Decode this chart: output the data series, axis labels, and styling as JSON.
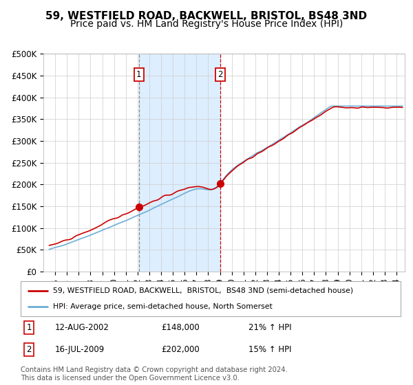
{
  "title": "59, WESTFIELD ROAD, BACKWELL, BRISTOL, BS48 3ND",
  "subtitle": "Price paid vs. HM Land Registry's House Price Index (HPI)",
  "legend_line1": "59, WESTFIELD ROAD, BACKWELL,  BRISTOL,  BS48 3ND (semi-detached house)",
  "legend_line2": "HPI: Average price, semi-detached house, North Somerset",
  "annotation1_label": "1",
  "annotation1_date": "12-AUG-2002",
  "annotation1_price": "£148,000",
  "annotation1_hpi": "21% ↑ HPI",
  "annotation2_label": "2",
  "annotation2_date": "16-JUL-2009",
  "annotation2_price": "£202,000",
  "annotation2_hpi": "15% ↑ HPI",
  "footnote": "Contains HM Land Registry data © Crown copyright and database right 2024.\nThis data is licensed under the Open Government Licence v3.0.",
  "hpi_color": "#6baed6",
  "price_color": "#cc0000",
  "marker_color": "#cc0000",
  "shade_color": "#ddeeff",
  "vline1_color": "#888888",
  "vline2_color": "#cc0000",
  "annotation_box_color": "#cc0000",
  "ylim": [
    0,
    500000
  ],
  "yticks": [
    0,
    50000,
    100000,
    150000,
    200000,
    250000,
    300000,
    350000,
    400000,
    450000,
    500000
  ],
  "year_start": 1995,
  "year_end": 2025,
  "sale1_year": 2002.62,
  "sale2_year": 2009.54,
  "sale1_price": 148000,
  "sale2_price": 202000,
  "title_fontsize": 11,
  "subtitle_fontsize": 10,
  "tick_fontsize": 8.5
}
